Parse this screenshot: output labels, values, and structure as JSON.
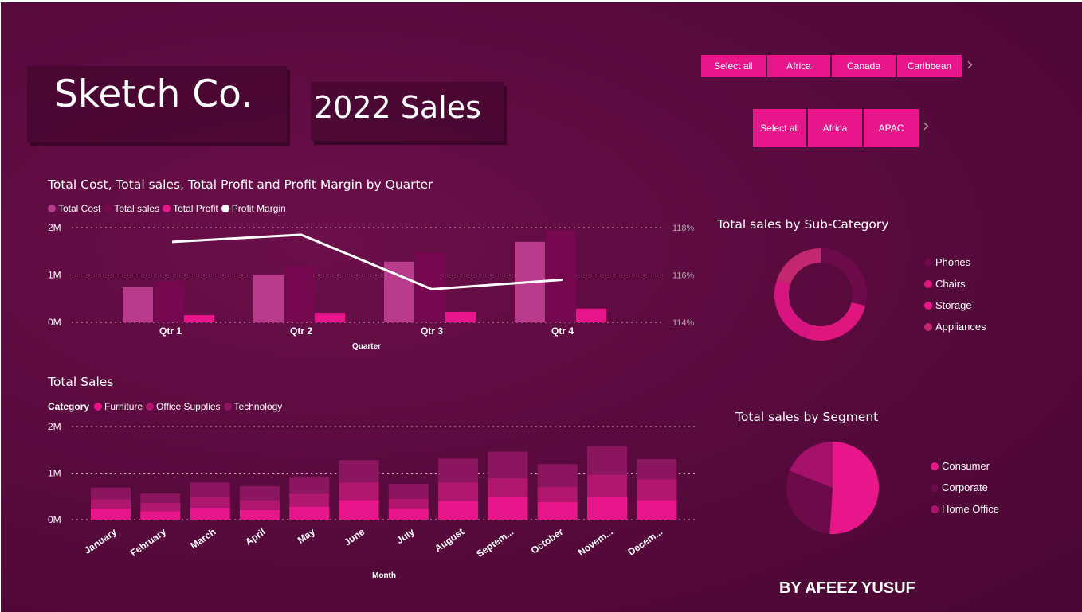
{
  "header": {
    "company": "Sketch Co.",
    "report": "2022 Sales"
  },
  "slicer_top": {
    "items": [
      "Select all",
      "Africa",
      "Canada",
      "Caribbean"
    ],
    "next_icon": "chevron-right-icon"
  },
  "slicer_bottom": {
    "items": [
      "Select all",
      "Africa",
      "APAC"
    ],
    "next_icon": "chevron-right-icon"
  },
  "colors": {
    "total_cost": "#b83b8c",
    "total_sales": "#75084f",
    "total_profit": "#e8168a",
    "profit_margin": "#ffffff",
    "furniture": "#e8168a",
    "office_supplies": "#b2176f",
    "technology": "#8c1560"
  },
  "quarter_chart": {
    "title": "Total Cost, Total sales, Total Profit and Profit Margin by Quarter",
    "legend": [
      "Total Cost",
      "Total sales",
      "Total Profit",
      "Profit Margin"
    ],
    "xlabel": "Quarter",
    "y_ticks": [
      "2M",
      "1M",
      "0M"
    ],
    "y2_ticks": [
      "118%",
      "116%",
      "114%"
    ]
  },
  "month_chart": {
    "title": "Total Sales",
    "legend_label": "Category",
    "legend": [
      "Furniture",
      "Office Supplies",
      "Technology"
    ],
    "xlabel": "Month",
    "y_ticks": [
      "2M",
      "1M",
      "0M"
    ]
  },
  "subcat_chart": {
    "title": "Total sales by Sub-Category",
    "legend": [
      "Phones",
      "Chairs",
      "Storage",
      "Appliances"
    ]
  },
  "segment_chart": {
    "title": "Total sales by Segment",
    "legend": [
      "Consumer",
      "Corporate",
      "Home Office"
    ]
  },
  "footer": {
    "author": "BY AFEEZ YUSUF"
  },
  "chart_data": [
    {
      "type": "bar",
      "title": "Total Cost, Total sales, Total Profit and Profit Margin by Quarter",
      "categories": [
        "Qtr 1",
        "Qtr 2",
        "Qtr 3",
        "Qtr 4"
      ],
      "xlabel": "Quarter",
      "ylim": [
        0,
        2000000
      ],
      "y2lim": [
        114,
        118
      ],
      "series": [
        {
          "name": "Total Cost",
          "values": [
            740000,
            1010000,
            1280000,
            1700000
          ]
        },
        {
          "name": "Total sales",
          "values": [
            870000,
            1180000,
            1470000,
            1950000
          ]
        },
        {
          "name": "Total Profit",
          "values": [
            150000,
            200000,
            220000,
            290000
          ]
        },
        {
          "name": "Profit Margin",
          "axis": "secondary",
          "values": [
            117.4,
            117.7,
            115.4,
            115.8
          ]
        }
      ],
      "grid": true,
      "legend": "top-left"
    },
    {
      "type": "bar",
      "title": "Total Sales",
      "categories": [
        "January",
        "February",
        "March",
        "April",
        "May",
        "June",
        "July",
        "August",
        "Septem...",
        "October",
        "Novem...",
        "Decem..."
      ],
      "xlabel": "Month",
      "ylim": [
        0,
        2000000
      ],
      "stacked": true,
      "series": [
        {
          "name": "Furniture",
          "values": [
            240000,
            180000,
            260000,
            210000,
            280000,
            420000,
            230000,
            400000,
            500000,
            380000,
            500000,
            420000
          ]
        },
        {
          "name": "Office Supplies",
          "values": [
            200000,
            180000,
            220000,
            210000,
            280000,
            380000,
            220000,
            400000,
            400000,
            320000,
            470000,
            450000
          ]
        },
        {
          "name": "Technology",
          "values": [
            250000,
            200000,
            320000,
            300000,
            360000,
            480000,
            320000,
            510000,
            560000,
            490000,
            610000,
            430000
          ]
        }
      ],
      "grid": true,
      "legend": "top-left"
    },
    {
      "type": "pie",
      "title": "Total sales by Sub-Category",
      "donut": true,
      "categories": [
        "Phones",
        "Chairs",
        "Storage",
        "Appliances"
      ],
      "values": [
        29,
        26,
        25,
        20
      ]
    },
    {
      "type": "pie",
      "title": "Total sales by Segment",
      "categories": [
        "Consumer",
        "Corporate",
        "Home Office"
      ],
      "values": [
        51,
        30,
        19
      ]
    }
  ]
}
